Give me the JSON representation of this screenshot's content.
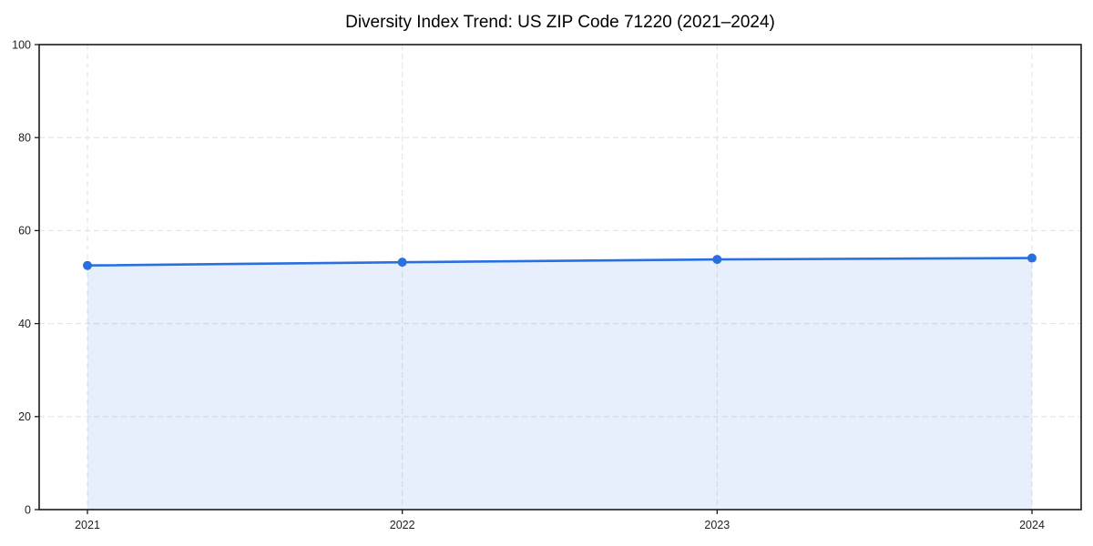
{
  "page": {
    "background_color": "#ffffff"
  },
  "chart_data": {
    "type": "line",
    "style": "line-with-area-fill-and-markers",
    "title": "Diversity Index Trend: US ZIP Code 71220 (2021–2024)",
    "xlabel": "",
    "ylabel": "",
    "x": [
      "2021",
      "2022",
      "2023",
      "2024"
    ],
    "series": [
      {
        "name": "Diversity Index",
        "values": [
          52.5,
          53.2,
          53.8,
          54.1
        ]
      }
    ],
    "ylim": [
      0,
      100
    ],
    "yticks": [
      0,
      20,
      40,
      60,
      80,
      100
    ],
    "grid": true,
    "grid_style": "dashed",
    "legend": false,
    "colors": {
      "line": "#2a6fe0",
      "marker": "#2a6fe0",
      "fill": "#2a6fe0",
      "fill_opacity": 0.11,
      "grid": "#e3e3e3",
      "spine": "#1b1b1b",
      "tick_label": "#1f1f1f",
      "title": "#000000",
      "plot_background": "#ffffff"
    }
  }
}
